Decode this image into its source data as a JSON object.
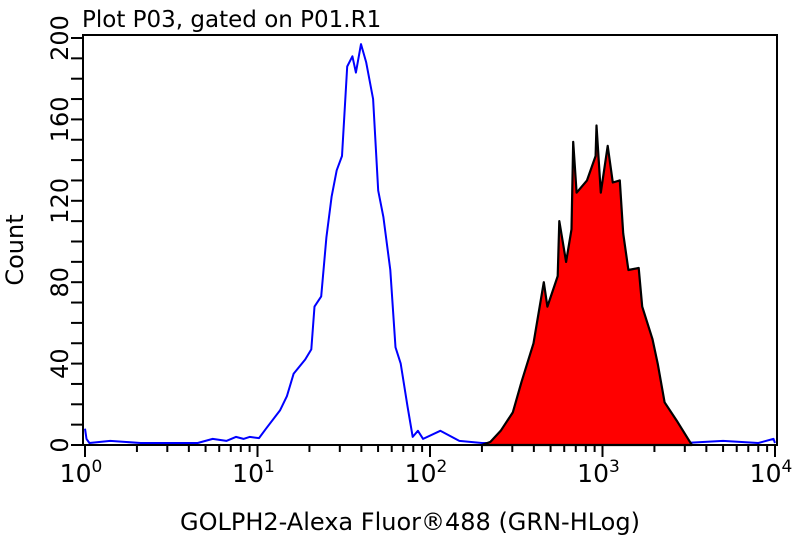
{
  "chart_data": {
    "type": "area",
    "title": "Plot P03, gated on P01.R1",
    "xlabel": "GOLPH2-Alexa Fluor®488 (GRN-HLog)",
    "ylabel": "Count",
    "x_scale": "log",
    "xlim": [
      1,
      10000
    ],
    "ylim": [
      0,
      200
    ],
    "x_ticks": [
      {
        "base": "10",
        "exp": "0"
      },
      {
        "base": "10",
        "exp": "1"
      },
      {
        "base": "10",
        "exp": "2"
      },
      {
        "base": "10",
        "exp": "3"
      },
      {
        "base": "10",
        "exp": "4"
      }
    ],
    "y_ticks": [
      "0",
      "40",
      "80",
      "120",
      "160",
      "200"
    ],
    "grid": false,
    "series": [
      {
        "style": "outline",
        "color": "#0000ff",
        "x": [
          1.0,
          1.02,
          1.06,
          1.4,
          2.1,
          3.2,
          4.5,
          5.5,
          6.6,
          7.5,
          8.3,
          9.0,
          10.2,
          11.2,
          13.5,
          14.8,
          16.2,
          18.9,
          20.5,
          21.4,
          23.4,
          25.1,
          26.9,
          28.8,
          30.9,
          33.1,
          35.5,
          37.2,
          39.8,
          42.7,
          46.8,
          50.1,
          53.7,
          58.9,
          63.1,
          67.6,
          74.1,
          79.4,
          85.1,
          91.2,
          114.8,
          147.9,
          200,
          400,
          800,
          1500,
          3000,
          5000,
          8000,
          9800,
          10000
        ],
        "y": [
          8,
          3,
          1,
          2,
          1,
          1,
          1,
          3,
          2,
          4,
          3,
          4,
          3.4,
          8,
          17,
          24,
          35,
          42,
          47,
          68,
          73,
          102,
          122,
          135,
          142,
          186,
          191,
          183,
          197,
          188,
          170,
          125,
          112,
          86,
          48,
          40,
          19,
          4,
          7,
          3,
          7,
          2,
          1,
          1,
          1,
          1,
          1,
          2,
          1,
          3,
          1
        ]
      },
      {
        "style": "filled",
        "color": "#ff0000",
        "outline_color": "#000000",
        "x": [
          199.5,
          223.9,
          257,
          302,
          339,
          398,
          457,
          479,
          550,
          562,
          615,
          661,
          676,
          708,
          813,
          912,
          923,
          977,
          1072,
          1148,
          1259,
          1318,
          1413,
          1622,
          1698,
          1950,
          2089,
          2291,
          2692,
          3162,
          3300
        ],
        "y": [
          0,
          1.5,
          7,
          16,
          31,
          50,
          80,
          68,
          83,
          110,
          90,
          106,
          149,
          124,
          130,
          142,
          157,
          124,
          147,
          129,
          130,
          104,
          86,
          87,
          68,
          52,
          40,
          21,
          12,
          2.5,
          0
        ]
      }
    ]
  }
}
